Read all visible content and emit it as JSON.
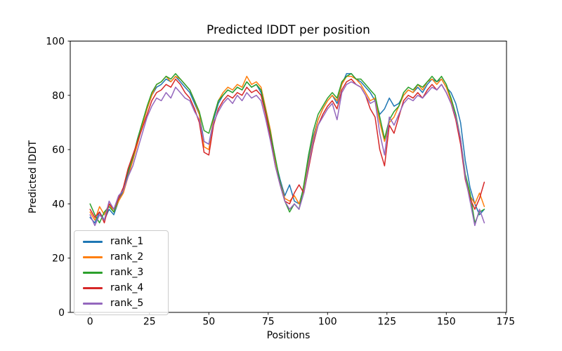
{
  "figure": {
    "background": "#ffffff",
    "spine_color": "#000000"
  },
  "legend": {
    "location": "lower left",
    "border_color": "#cccccc"
  },
  "chart_data": {
    "type": "line",
    "title": "Predicted lDDT per position",
    "xlabel": "Positions",
    "ylabel": "Predicted lDDT",
    "xlim": [
      -8.35,
      175.35
    ],
    "ylim": [
      0,
      100
    ],
    "xticks": [
      0,
      25,
      50,
      75,
      100,
      125,
      150,
      175
    ],
    "yticks": [
      0,
      20,
      40,
      60,
      80,
      100
    ],
    "grid": false,
    "legend_position": "lower left",
    "x": [
      0,
      2,
      4,
      6,
      8,
      10,
      12,
      14,
      16,
      18,
      20,
      22,
      24,
      26,
      28,
      30,
      32,
      34,
      36,
      38,
      40,
      42,
      44,
      46,
      48,
      50,
      52,
      54,
      56,
      58,
      60,
      62,
      64,
      66,
      68,
      70,
      72,
      74,
      76,
      78,
      80,
      82,
      84,
      86,
      88,
      90,
      92,
      94,
      96,
      98,
      100,
      102,
      104,
      106,
      108,
      110,
      112,
      114,
      116,
      118,
      120,
      122,
      124,
      126,
      128,
      130,
      132,
      134,
      136,
      138,
      140,
      142,
      144,
      146,
      148,
      150,
      152,
      154,
      156,
      158,
      160,
      162,
      164,
      166
    ],
    "series": [
      {
        "name": "rank_1",
        "color": "#1f77b4",
        "values": [
          35,
          33,
          37,
          34,
          38,
          36,
          41,
          45,
          51,
          56,
          63,
          69,
          75,
          80,
          83,
          84,
          86,
          85,
          87,
          85,
          83,
          81,
          77,
          73,
          63,
          62,
          71,
          77,
          80,
          82,
          81,
          83,
          82,
          85,
          83,
          84,
          81,
          73,
          66,
          56,
          49,
          43,
          47,
          41,
          40,
          46,
          56,
          65,
          71,
          75,
          78,
          80,
          77,
          84,
          88,
          88,
          86,
          85,
          83,
          81,
          78,
          73,
          75,
          79,
          76,
          77,
          80,
          82,
          81,
          83,
          81,
          84,
          86,
          85,
          86,
          83,
          81,
          77,
          70,
          56,
          46,
          40,
          36,
          38
        ]
      },
      {
        "name": "rank_2",
        "color": "#ff7f0e",
        "values": [
          37,
          34,
          39,
          36,
          40,
          37,
          41,
          44,
          50,
          56,
          62,
          69,
          75,
          80,
          84,
          85,
          87,
          85,
          87,
          86,
          84,
          82,
          78,
          73,
          61,
          60,
          72,
          78,
          81,
          83,
          82,
          84,
          83,
          87,
          84,
          85,
          83,
          75,
          67,
          56,
          48,
          42,
          41,
          43,
          40,
          45,
          55,
          64,
          71,
          75,
          78,
          80,
          78,
          84,
          87,
          87,
          86,
          84,
          81,
          78,
          79,
          70,
          63,
          70,
          72,
          76,
          80,
          82,
          81,
          84,
          82,
          85,
          86,
          84,
          86,
          83,
          78,
          72,
          63,
          50,
          43,
          40,
          44,
          39
        ]
      },
      {
        "name": "rank_3",
        "color": "#2ca02c",
        "values": [
          40,
          36,
          33,
          37,
          39,
          37,
          42,
          46,
          52,
          57,
          64,
          70,
          76,
          81,
          84,
          85,
          87,
          86,
          88,
          86,
          84,
          82,
          78,
          74,
          67,
          66,
          72,
          78,
          80,
          82,
          81,
          83,
          82,
          85,
          83,
          84,
          82,
          74,
          66,
          57,
          48,
          41,
          37,
          40,
          38,
          47,
          58,
          67,
          73,
          76,
          79,
          81,
          79,
          85,
          87,
          88,
          86,
          86,
          84,
          82,
          80,
          72,
          64,
          71,
          74,
          76,
          81,
          83,
          82,
          84,
          83,
          85,
          87,
          85,
          87,
          84,
          79,
          73,
          64,
          51,
          44,
          33,
          37,
          38
        ]
      },
      {
        "name": "rank_4",
        "color": "#d62728",
        "values": [
          38,
          35,
          37,
          33,
          40,
          38,
          42,
          46,
          53,
          58,
          63,
          68,
          73,
          78,
          81,
          82,
          84,
          83,
          86,
          84,
          81,
          79,
          75,
          70,
          59,
          58,
          69,
          75,
          78,
          80,
          79,
          81,
          80,
          83,
          81,
          82,
          80,
          73,
          64,
          54,
          47,
          41,
          40,
          44,
          47,
          44,
          53,
          62,
          69,
          73,
          76,
          78,
          75,
          82,
          85,
          86,
          84,
          83,
          80,
          75,
          72,
          60,
          54,
          69,
          66,
          72,
          78,
          80,
          79,
          81,
          79,
          82,
          84,
          82,
          84,
          81,
          77,
          71,
          62,
          49,
          42,
          38,
          42,
          48
        ]
      },
      {
        "name": "rank_5",
        "color": "#9467bd",
        "values": [
          36,
          32,
          36,
          34,
          41,
          38,
          43,
          45,
          50,
          54,
          60,
          66,
          72,
          76,
          79,
          78,
          81,
          79,
          83,
          81,
          79,
          78,
          74,
          71,
          63,
          62,
          70,
          74,
          77,
          79,
          77,
          80,
          78,
          81,
          79,
          80,
          78,
          71,
          63,
          54,
          47,
          41,
          38,
          40,
          38,
          44,
          54,
          63,
          69,
          72,
          75,
          77,
          71,
          81,
          84,
          85,
          84,
          83,
          80,
          77,
          78,
          66,
          58,
          72,
          69,
          73,
          77,
          79,
          78,
          80,
          79,
          81,
          83,
          82,
          84,
          81,
          77,
          72,
          64,
          50,
          41,
          32,
          38,
          33
        ]
      }
    ]
  }
}
